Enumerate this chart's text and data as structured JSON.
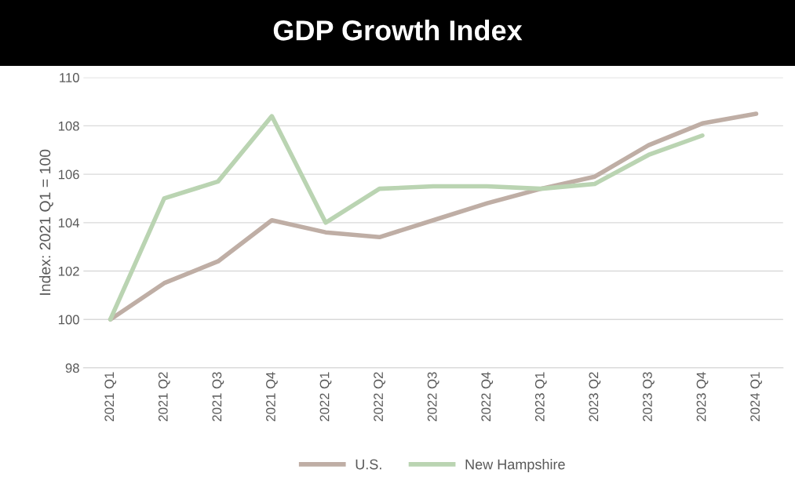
{
  "chart_data": {
    "type": "line",
    "title": "GDP Growth Index",
    "ylabel": "Index: 2021 Q1 = 100",
    "categories": [
      "2021 Q1",
      "2021 Q2",
      "2021 Q3",
      "2021 Q4",
      "2022 Q1",
      "2022 Q2",
      "2022 Q3",
      "2022 Q4",
      "2023 Q1",
      "2023 Q2",
      "2023 Q3",
      "2023 Q4",
      "2024 Q1"
    ],
    "series": [
      {
        "name": "U.S.",
        "color": "#bfaea5",
        "values": [
          100,
          101.5,
          102.4,
          104.1,
          103.6,
          103.4,
          104.1,
          104.8,
          105.4,
          105.9,
          107.2,
          108.1,
          108.5
        ]
      },
      {
        "name": "New Hampshire",
        "color": "#bad4b2",
        "values": [
          100,
          105.0,
          105.7,
          108.4,
          104.0,
          105.4,
          105.5,
          105.5,
          105.4,
          105.6,
          106.8,
          107.6,
          null
        ]
      }
    ],
    "ylim": [
      98,
      110
    ],
    "yticks": [
      98,
      100,
      102,
      104,
      106,
      108,
      110
    ],
    "grid": "y",
    "legend": "bottom",
    "marker": "none",
    "line_style": "solid"
  }
}
